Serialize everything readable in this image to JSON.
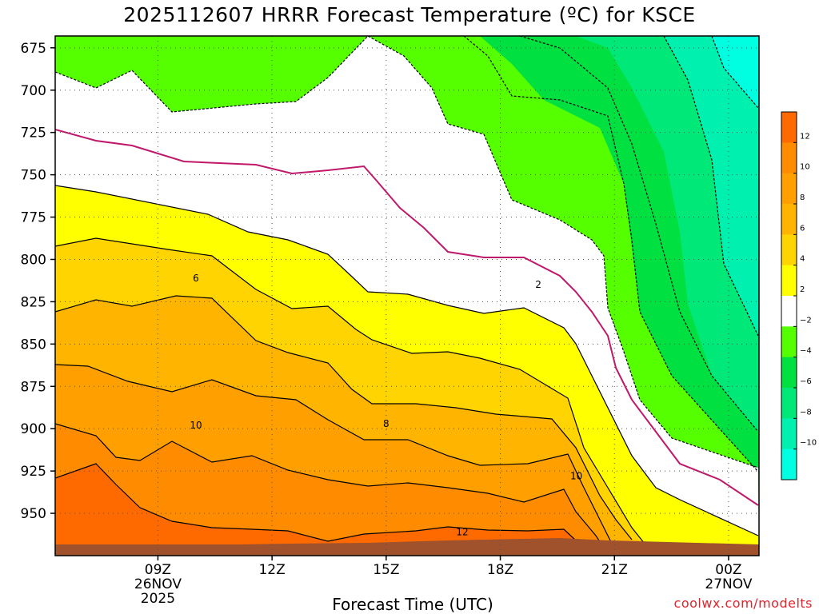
{
  "title": "2025112607 HRRR Forecast Temperature (ºC) for KSCE",
  "credit": "coolwx.com/modelts",
  "chart_data": {
    "type": "filled-contour",
    "title": "2025112607 HRRR Forecast Temperature (ºC) for KSCE",
    "xlabel": "Forecast Time (UTC)",
    "ylabel": "",
    "x_range_hours_utc": [
      6.3,
      24.8
    ],
    "y_range_hpa": [
      975,
      668
    ],
    "y_axis_reversed": true,
    "grid": true,
    "ytick_labels": [
      "675",
      "700",
      "725",
      "750",
      "775",
      "800",
      "825",
      "850",
      "875",
      "900",
      "925",
      "950"
    ],
    "yticks": [
      675,
      700,
      725,
      750,
      775,
      800,
      825,
      850,
      875,
      900,
      925,
      950
    ],
    "xticks": [
      {
        "hour": 9,
        "label": "09Z",
        "date": "26NOV",
        "year": "2025"
      },
      {
        "hour": 12,
        "label": "12Z",
        "date": "",
        "year": ""
      },
      {
        "hour": 15,
        "label": "15Z",
        "date": "",
        "year": ""
      },
      {
        "hour": 18,
        "label": "18Z",
        "date": "",
        "year": ""
      },
      {
        "hour": 21,
        "label": "21Z",
        "date": "",
        "year": ""
      },
      {
        "hour": 24,
        "label": "00Z",
        "date": "27NOV",
        "year": ""
      }
    ],
    "contour_labels": [
      {
        "value": "2",
        "hour": 19.0,
        "p": 815
      },
      {
        "value": "6",
        "hour": 10.0,
        "p": 811
      },
      {
        "value": "8",
        "hour": 15.0,
        "p": 897
      },
      {
        "value": "10",
        "hour": 10.0,
        "p": 898
      },
      {
        "value": "10",
        "hour": 20.0,
        "p": 928
      },
      {
        "value": "12",
        "hour": 17.0,
        "p": 961
      }
    ],
    "colorbar": {
      "labels": [
        "12",
        "10",
        "8",
        "6",
        "4",
        "2",
        "−2",
        "−4",
        "−6",
        "−8",
        "−10"
      ],
      "colors": [
        "#ff6a00",
        "#ff8c00",
        "#ffa000",
        "#ffb400",
        "#ffd400",
        "#ffff00",
        "#ffffff",
        "#55ff00",
        "#00e040",
        "#00e878",
        "#00f0b0",
        "#00ffe0"
      ]
    },
    "fills": [
      {
        "name": "warm-12",
        "color": "#ff6a00"
      },
      {
        "name": "warm-10",
        "color": "#ff8c00"
      },
      {
        "name": "warm-8",
        "color": "#ffa000"
      },
      {
        "name": "warm-6",
        "color": "#ffb400"
      },
      {
        "name": "warm-4",
        "color": "#ffd400"
      },
      {
        "name": "warm-2",
        "color": "#ffff00"
      },
      {
        "name": "near-zero",
        "color": "#ffffff"
      },
      {
        "name": "cold-2",
        "color": "#55ff00"
      },
      {
        "name": "cold-4",
        "color": "#00e040"
      },
      {
        "name": "cold-6",
        "color": "#00e878"
      },
      {
        "name": "cold-8",
        "color": "#00f0b0"
      },
      {
        "name": "cold-10",
        "color": "#00ffe0"
      }
    ],
    "freezing_line_color": "#c0186a",
    "ground_color": "#a0522d"
  }
}
